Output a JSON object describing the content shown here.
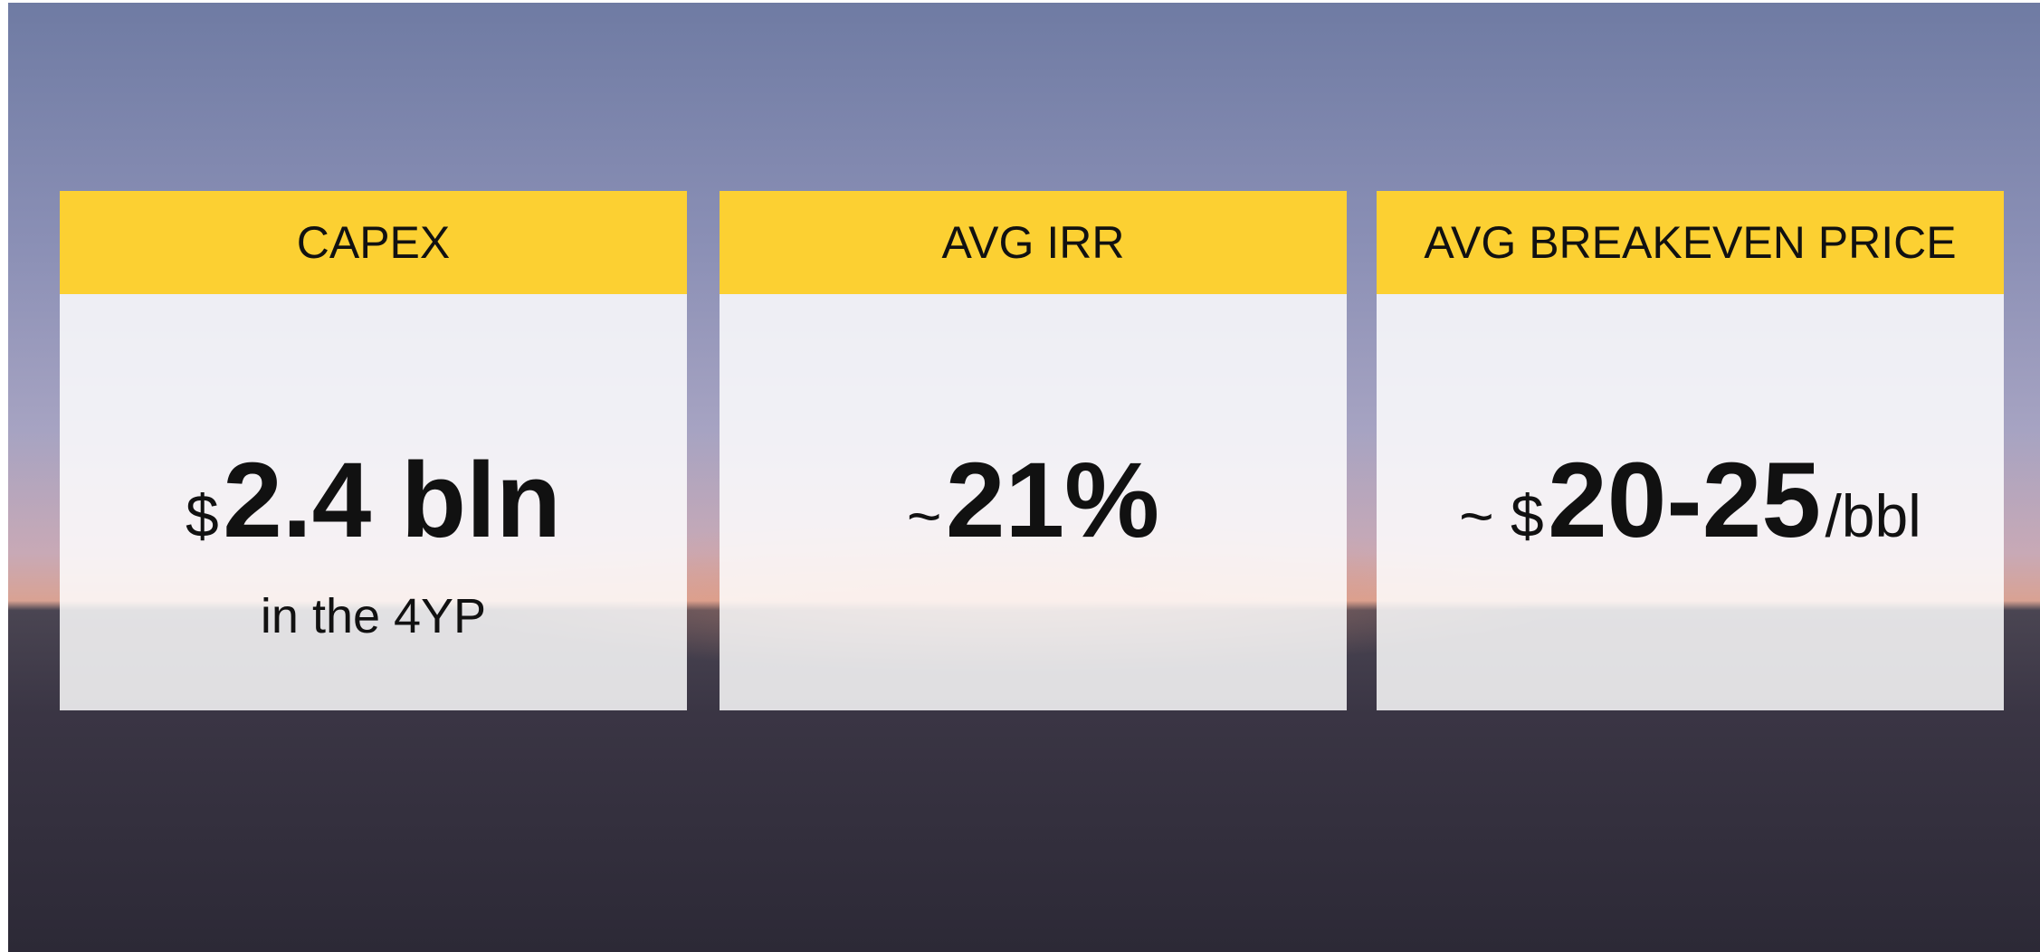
{
  "cards": [
    {
      "header": "CAPEX",
      "prefix": "$",
      "value": "2.4 bln",
      "note": "in the 4YP"
    },
    {
      "header": "AVG IRR",
      "prefix": "~",
      "value": "21%"
    },
    {
      "header": "AVG BREAKEVEN PRICE",
      "prefix": "~ $",
      "value": "20-25",
      "suffix": "/bbl"
    }
  ]
}
